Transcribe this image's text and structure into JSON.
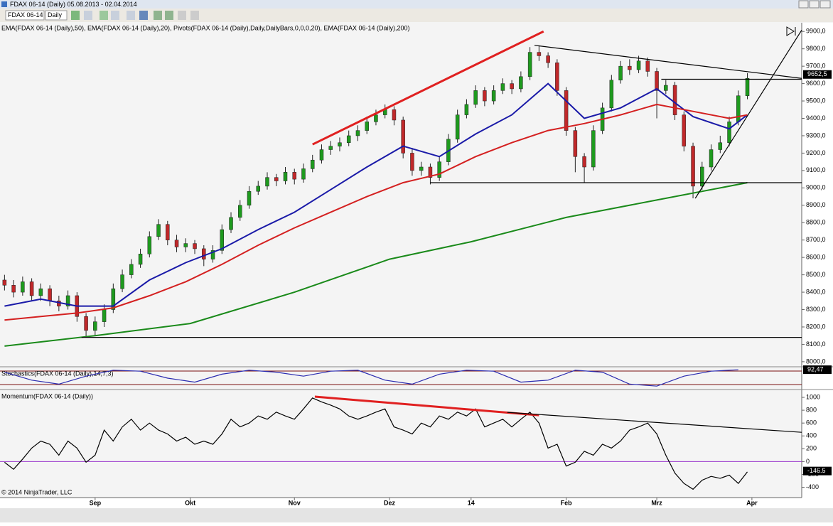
{
  "window": {
    "title": "FDAX 06-14 (Daily)  05.08.2013 - 02.04.2014",
    "instrument": "FDAX 06-14",
    "interval": "Daily"
  },
  "chart_data": [
    {
      "type": "candlestick",
      "title": "EMA(FDAX 06-14 (Daily),50), EMA(FDAX 06-14 (Daily),20), Pivots(FDAX 06-14 (Daily),Daily,DailyBars,0,0,0,20), EMA(FDAX 06-14 (Daily),200)",
      "up_color": "#1e9a1e",
      "down_color": "#c0282a",
      "xlim": [
        -1,
        176
      ],
      "ylim": [
        7975,
        9950
      ],
      "yticks": [
        {
          "value": 8000,
          "label": "8000,0"
        },
        {
          "value": 8100,
          "label": "8100,0"
        },
        {
          "value": 8200,
          "label": "8200,0"
        },
        {
          "value": 8300,
          "label": "8300,0"
        },
        {
          "value": 8400,
          "label": "8400,0"
        },
        {
          "value": 8500,
          "label": "8500,0"
        },
        {
          "value": 8600,
          "label": "8600,0"
        },
        {
          "value": 8700,
          "label": "8700,0"
        },
        {
          "value": 8800,
          "label": "8800,0"
        },
        {
          "value": 8900,
          "label": "8900,0"
        },
        {
          "value": 9000,
          "label": "9000,0"
        },
        {
          "value": 9100,
          "label": "9100,0"
        },
        {
          "value": 9200,
          "label": "9200,0"
        },
        {
          "value": 9300,
          "label": "9300,0"
        },
        {
          "value": 9400,
          "label": "9400,0"
        },
        {
          "value": 9500,
          "label": "9500,0"
        },
        {
          "value": 9600,
          "label": "9600,0"
        },
        {
          "value": 9700,
          "label": "9700,0"
        },
        {
          "value": 9800,
          "label": "9800,0"
        },
        {
          "value": 9900,
          "label": "9900,0"
        }
      ],
      "last": {
        "value": 9652.5,
        "label": "9652,5"
      },
      "x": [
        0,
        2,
        4,
        6,
        8,
        10,
        12,
        14,
        16,
        18,
        20,
        22,
        24,
        26,
        28,
        30,
        32,
        34,
        36,
        38,
        40,
        42,
        44,
        46,
        48,
        50,
        52,
        54,
        56,
        58,
        60,
        62,
        64,
        66,
        68,
        70,
        72,
        74,
        76,
        78,
        80,
        82,
        84,
        86,
        88,
        90,
        92,
        94,
        96,
        98,
        100,
        102,
        104,
        106,
        108,
        110,
        112,
        114,
        116,
        118,
        120,
        122,
        124,
        126,
        128,
        130,
        132,
        134,
        136,
        138,
        140,
        142,
        144,
        146,
        148,
        150,
        152,
        154,
        156,
        158,
        160,
        162,
        164
      ],
      "ohlc": [
        [
          8470,
          8500,
          8410,
          8440
        ],
        [
          8440,
          8470,
          8370,
          8400
        ],
        [
          8400,
          8490,
          8380,
          8460
        ],
        [
          8460,
          8480,
          8350,
          8380
        ],
        [
          8380,
          8450,
          8350,
          8420
        ],
        [
          8420,
          8440,
          8320,
          8350
        ],
        [
          8350,
          8380,
          8290,
          8320
        ],
        [
          8320,
          8410,
          8300,
          8380
        ],
        [
          8380,
          8400,
          8230,
          8260
        ],
        [
          8260,
          8280,
          8140,
          8180
        ],
        [
          8180,
          8260,
          8150,
          8230
        ],
        [
          8230,
          8330,
          8200,
          8300
        ],
        [
          8300,
          8450,
          8280,
          8420
        ],
        [
          8420,
          8530,
          8400,
          8500
        ],
        [
          8500,
          8590,
          8480,
          8560
        ],
        [
          8560,
          8650,
          8540,
          8620
        ],
        [
          8620,
          8750,
          8600,
          8720
        ],
        [
          8720,
          8820,
          8700,
          8790
        ],
        [
          8790,
          8810,
          8670,
          8700
        ],
        [
          8700,
          8730,
          8630,
          8660
        ],
        [
          8660,
          8710,
          8630,
          8680
        ],
        [
          8680,
          8700,
          8620,
          8650
        ],
        [
          8650,
          8670,
          8550,
          8590
        ],
        [
          8590,
          8670,
          8570,
          8640
        ],
        [
          8640,
          8790,
          8620,
          8760
        ],
        [
          8760,
          8860,
          8740,
          8830
        ],
        [
          8830,
          8930,
          8810,
          8900
        ],
        [
          8900,
          9010,
          8880,
          8980
        ],
        [
          8980,
          9040,
          8960,
          9010
        ],
        [
          9010,
          9090,
          8990,
          9060
        ],
        [
          9060,
          9080,
          9010,
          9040
        ],
        [
          9040,
          9120,
          9020,
          9090
        ],
        [
          9090,
          9110,
          9020,
          9050
        ],
        [
          9050,
          9140,
          9030,
          9110
        ],
        [
          9110,
          9190,
          9090,
          9160
        ],
        [
          9160,
          9250,
          9140,
          9220
        ],
        [
          9220,
          9270,
          9190,
          9240
        ],
        [
          9240,
          9290,
          9210,
          9260
        ],
        [
          9260,
          9330,
          9240,
          9300
        ],
        [
          9300,
          9360,
          9270,
          9330
        ],
        [
          9330,
          9410,
          9310,
          9380
        ],
        [
          9380,
          9450,
          9360,
          9420
        ],
        [
          9420,
          9480,
          9400,
          9450
        ],
        [
          9450,
          9470,
          9360,
          9390
        ],
        [
          9390,
          9410,
          9170,
          9200
        ],
        [
          9200,
          9230,
          9070,
          9100
        ],
        [
          9100,
          9150,
          9070,
          9120
        ],
        [
          9120,
          9140,
          9020,
          9060
        ],
        [
          9060,
          9180,
          9040,
          9150
        ],
        [
          9150,
          9310,
          9130,
          9280
        ],
        [
          9280,
          9450,
          9260,
          9420
        ],
        [
          9420,
          9510,
          9400,
          9480
        ],
        [
          9480,
          9590,
          9460,
          9560
        ],
        [
          9560,
          9580,
          9470,
          9500
        ],
        [
          9500,
          9590,
          9480,
          9560
        ],
        [
          9560,
          9630,
          9540,
          9600
        ],
        [
          9600,
          9620,
          9540,
          9570
        ],
        [
          9570,
          9670,
          9550,
          9640
        ],
        [
          9640,
          9810,
          9620,
          9780
        ],
        [
          9780,
          9820,
          9730,
          9760
        ],
        [
          9760,
          9780,
          9690,
          9720
        ],
        [
          9720,
          9740,
          9530,
          9560
        ],
        [
          9560,
          9580,
          9300,
          9330
        ],
        [
          9330,
          9350,
          9090,
          9180
        ],
        [
          9180,
          9200,
          9030,
          9120
        ],
        [
          9120,
          9360,
          9100,
          9330
        ],
        [
          9330,
          9490,
          9310,
          9460
        ],
        [
          9460,
          9650,
          9440,
          9620
        ],
        [
          9620,
          9730,
          9600,
          9700
        ],
        [
          9700,
          9740,
          9650,
          9680
        ],
        [
          9680,
          9760,
          9660,
          9730
        ],
        [
          9730,
          9750,
          9640,
          9670
        ],
        [
          9670,
          9690,
          9400,
          9560
        ],
        [
          9560,
          9620,
          9540,
          9590
        ],
        [
          9590,
          9610,
          9390,
          9420
        ],
        [
          9420,
          9440,
          9210,
          9240
        ],
        [
          9240,
          9260,
          8940,
          9010
        ],
        [
          9010,
          9150,
          8990,
          9120
        ],
        [
          9120,
          9250,
          9100,
          9220
        ],
        [
          9220,
          9300,
          9200,
          9260
        ],
        [
          9260,
          9410,
          9240,
          9380
        ],
        [
          9380,
          9560,
          9360,
          9530
        ],
        [
          9530,
          9660,
          9510,
          9630
        ]
      ],
      "series": [
        {
          "color": "#1a1aa8",
          "x": [
            0,
            8,
            16,
            24,
            32,
            40,
            48,
            56,
            64,
            72,
            80,
            88,
            96,
            104,
            112,
            120,
            128,
            136,
            144,
            152,
            160,
            164
          ],
          "values": [
            8320,
            8360,
            8320,
            8320,
            8470,
            8570,
            8650,
            8760,
            8860,
            8990,
            9120,
            9240,
            9180,
            9310,
            9420,
            9600,
            9400,
            9460,
            9570,
            9410,
            9340,
            9420
          ]
        },
        {
          "color": "#d42020",
          "x": [
            0,
            8,
            16,
            24,
            32,
            40,
            48,
            56,
            64,
            72,
            80,
            88,
            96,
            104,
            112,
            120,
            128,
            136,
            144,
            152,
            160,
            164
          ],
          "values": [
            8240,
            8260,
            8280,
            8310,
            8380,
            8460,
            8560,
            8670,
            8770,
            8860,
            8950,
            9030,
            9080,
            9180,
            9260,
            9330,
            9370,
            9420,
            9480,
            9440,
            9400,
            9420
          ]
        },
        {
          "color": "#1a8a1a",
          "x": [
            0,
            20,
            41,
            64,
            85,
            103,
            124,
            144,
            164
          ],
          "values": [
            8090,
            8150,
            8220,
            8400,
            8590,
            8690,
            8830,
            8930,
            9030
          ]
        }
      ],
      "trendlines": [
        {
          "color": "#e02020",
          "x": [
            68,
            119
          ],
          "y": [
            9250,
            9900
          ]
        },
        {
          "color": "#000000",
          "x": [
            117,
            176
          ],
          "y": [
            9820,
            9630
          ]
        },
        {
          "color": "#000000",
          "x": [
            145,
            176
          ],
          "y": [
            9625,
            9625
          ]
        },
        {
          "color": "#000000",
          "x": [
            94,
            176
          ],
          "y": [
            9030,
            9030
          ]
        },
        {
          "color": "#000000",
          "x": [
            17,
            176
          ],
          "y": [
            8140,
            8140
          ]
        },
        {
          "color": "#000000",
          "x": [
            152.5,
            176
          ],
          "y": [
            8940,
            9908
          ]
        }
      ]
    },
    {
      "type": "line",
      "title": "Stochastics(FDAX 06-14 (Daily),14,7,3)",
      "xlim": [
        -1,
        176
      ],
      "ylim": [
        0,
        100
      ],
      "last": {
        "value": 92.47,
        "label": "92,47"
      },
      "series": [
        {
          "color": "#2a2ab0",
          "x": [
            0,
            6,
            12,
            18,
            24,
            30,
            36,
            42,
            48,
            54,
            60,
            66,
            72,
            78,
            84,
            90,
            96,
            102,
            108,
            114,
            120,
            126,
            132,
            138,
            144,
            150,
            156,
            162
          ],
          "values": [
            80,
            40,
            20,
            60,
            90,
            85,
            50,
            30,
            70,
            90,
            80,
            60,
            85,
            90,
            40,
            20,
            70,
            90,
            85,
            30,
            40,
            90,
            80,
            20,
            10,
            60,
            85,
            92
          ]
        }
      ]
    },
    {
      "type": "line",
      "title": "Momentum(FDAX 06-14 (Daily))",
      "copyright": "© 2014 NinjaTrader, LLC",
      "xlim": [
        -1,
        176
      ],
      "ylim": [
        -560,
        1100
      ],
      "yticks": [
        -400,
        -200,
        0,
        200,
        400,
        600,
        800,
        1000
      ],
      "hlines": [
        0
      ],
      "hline_color": "#9933cc",
      "last": {
        "value": -146.5,
        "label": "-146.5"
      },
      "xticks": [
        {
          "value": 20,
          "label": "Sep"
        },
        {
          "value": 41,
          "label": "Okt"
        },
        {
          "value": 64,
          "label": "Nov"
        },
        {
          "value": 85,
          "label": "Dez"
        },
        {
          "value": 103,
          "label": "14"
        },
        {
          "value": 124,
          "label": "Feb"
        },
        {
          "value": 144,
          "label": "Mrz"
        },
        {
          "value": 165,
          "label": "Apr"
        }
      ],
      "series": [
        {
          "color": "#000000",
          "x": [
            0,
            2,
            4,
            6,
            8,
            10,
            12,
            14,
            16,
            18,
            20,
            22,
            24,
            26,
            28,
            30,
            32,
            34,
            36,
            38,
            40,
            42,
            44,
            46,
            48,
            50,
            52,
            54,
            56,
            58,
            60,
            62,
            64,
            66,
            68,
            70,
            72,
            74,
            76,
            78,
            80,
            82,
            84,
            86,
            88,
            90,
            92,
            94,
            96,
            98,
            100,
            102,
            104,
            106,
            108,
            110,
            112,
            114,
            116,
            118,
            120,
            122,
            124,
            126,
            128,
            130,
            132,
            134,
            136,
            138,
            140,
            142,
            144,
            146,
            148,
            150,
            152,
            154,
            156,
            158,
            160,
            162,
            164
          ],
          "values": [
            -11,
            -120,
            40,
            210,
            320,
            270,
            100,
            320,
            210,
            -10,
            100,
            490,
            320,
            540,
            660,
            490,
            600,
            490,
            430,
            320,
            380,
            270,
            320,
            270,
            430,
            660,
            540,
            600,
            710,
            660,
            770,
            710,
            660,
            820,
            990,
            930,
            880,
            820,
            710,
            660,
            710,
            770,
            820,
            540,
            490,
            430,
            600,
            540,
            710,
            660,
            770,
            710,
            820,
            540,
            600,
            660,
            540,
            660,
            770,
            600,
            210,
            270,
            -70,
            -10,
            160,
            100,
            270,
            210,
            320,
            490,
            540,
            600,
            430,
            100,
            -180,
            -340,
            -430,
            -290,
            -230,
            -260,
            -210,
            -340,
            -160
          ]
        }
      ],
      "trendlines": [
        {
          "color": "#e02020",
          "x": [
            68.5,
            118
          ],
          "y": [
            1011,
            722
          ]
        },
        {
          "color": "#000000",
          "x": [
            111,
            176
          ],
          "y": [
            767,
            456
          ]
        }
      ]
    }
  ]
}
